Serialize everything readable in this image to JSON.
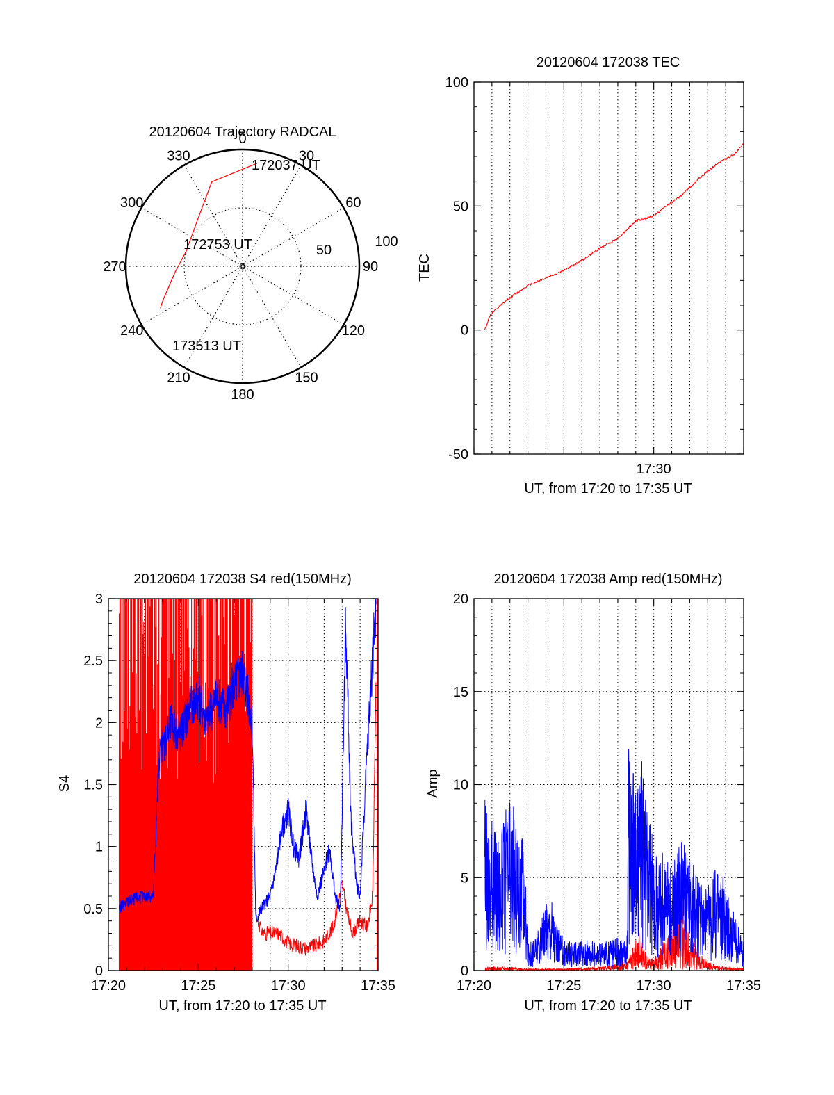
{
  "colors": {
    "red": "#ff0000",
    "blue": "#0000ff",
    "axis": "#000000"
  },
  "chart_data": [
    {
      "type": "polar",
      "title": "20120604 Trajectory RADCAL",
      "angle_labels": [
        "0",
        "30",
        "60",
        "90",
        "120",
        "150",
        "180",
        "210",
        "240",
        "270",
        "300",
        "330"
      ],
      "radial_labels": [
        "50",
        "100"
      ],
      "radial_max": 100,
      "start_label": "172037 UT",
      "mid_label": "172753 UT",
      "end_label": "173513 UT",
      "trajectory": {
        "color": "red",
        "points": [
          [
            8,
            89
          ],
          [
            340,
            77
          ],
          [
            315,
            55
          ],
          [
            285,
            50
          ],
          [
            265,
            58
          ],
          [
            253,
            67
          ],
          [
            247,
            74
          ],
          [
            243,
            79
          ]
        ]
      }
    },
    {
      "type": "line",
      "title": "20120604 172038 TEC",
      "ylabel": "TEC",
      "xlabel": "UT, from 17:20 to 17:35 UT",
      "ylim": [
        -50,
        100
      ],
      "yticks": [
        "-50",
        "0",
        "50",
        "100"
      ],
      "xlim_min": [
        20,
        35
      ],
      "xticks": [
        {
          "t": 30,
          "label": "17:30"
        }
      ],
      "series": [
        {
          "color": "red",
          "x": [
            20.6,
            20.9,
            21.5,
            22.0,
            23.0,
            24.0,
            25.0,
            26.0,
            27.0,
            28.0,
            29.0,
            30.0,
            30.7,
            31.5,
            32.5,
            33.5,
            34.5,
            35.0
          ],
          "y": [
            0,
            6,
            10,
            13,
            18,
            21,
            24,
            28,
            33,
            37,
            44,
            46,
            50,
            54,
            61,
            67,
            71,
            75
          ]
        }
      ]
    },
    {
      "type": "line",
      "title": "20120604 172038 S4 red(150MHz)",
      "ylabel": "S4",
      "xlabel": "UT, from 17:20 to 17:35 UT",
      "ylim": [
        0,
        3
      ],
      "yticks": [
        "0",
        "0.5",
        "1",
        "1.5",
        "2",
        "2.5",
        "3"
      ],
      "xlim_min": [
        20,
        35
      ],
      "xticks": [
        {
          "t": 20,
          "label": "17:20"
        },
        {
          "t": 25,
          "label": "17:25"
        },
        {
          "t": 30,
          "label": "17:30"
        },
        {
          "t": 35,
          "label": "17:35"
        }
      ],
      "series": [
        {
          "color": "red",
          "style": "spikes",
          "x": [
            20.6,
            28.0
          ],
          "y": [
            0,
            3
          ],
          "trace": {
            "x": [
              28.3,
              28.6,
              29.0,
              29.5,
              30.0,
              30.5,
              31.0,
              31.5,
              32.0,
              32.5,
              32.8,
              33.0,
              33.3,
              33.6,
              34.0,
              34.4,
              34.7,
              34.9
            ],
            "y": [
              0.4,
              0.3,
              0.3,
              0.3,
              0.22,
              0.2,
              0.18,
              0.2,
              0.24,
              0.35,
              0.55,
              0.7,
              0.45,
              0.3,
              0.4,
              0.35,
              0.6,
              2.5
            ]
          }
        },
        {
          "color": "blue",
          "x": [
            20.6,
            21.0,
            21.5,
            22.0,
            22.5,
            22.8,
            23.0,
            23.5,
            24.0,
            24.5,
            25.0,
            25.5,
            26.0,
            26.5,
            27.0,
            27.5,
            28.0,
            28.2,
            28.5,
            29.0,
            29.3,
            29.6,
            30.0,
            30.3,
            30.6,
            31.0,
            31.3,
            31.6,
            32.0,
            32.3,
            32.6,
            32.9,
            33.2,
            33.5,
            33.8,
            34.0,
            34.3,
            34.6,
            34.9
          ],
          "y": [
            0.5,
            0.55,
            0.58,
            0.6,
            0.6,
            1.7,
            1.8,
            2.0,
            1.9,
            2.1,
            2.2,
            2.0,
            2.2,
            2.1,
            2.3,
            2.4,
            2.0,
            0.4,
            0.5,
            0.6,
            0.8,
            1.1,
            1.3,
            1.0,
            0.9,
            1.3,
            0.9,
            0.6,
            0.8,
            1.0,
            0.6,
            0.5,
            2.8,
            1.2,
            0.7,
            0.6,
            1.5,
            2.3,
            3.0
          ]
        }
      ]
    },
    {
      "type": "line",
      "title": "20120604 172038 Amp red(150MHz)",
      "ylabel": "Amp",
      "xlabel": "UT, from 17:20 to 17:35 UT",
      "ylim": [
        0,
        20
      ],
      "yticks": [
        "0",
        "5",
        "10",
        "15",
        "20"
      ],
      "xlim_min": [
        20,
        35
      ],
      "xticks": [
        {
          "t": 20,
          "label": "17:20"
        },
        {
          "t": 25,
          "label": "17:25"
        },
        {
          "t": 30,
          "label": "17:30"
        },
        {
          "t": 35,
          "label": "17:35"
        }
      ],
      "series": [
        {
          "color": "red",
          "x": [
            20.6,
            22.0,
            23.0,
            25.0,
            27.0,
            28.5,
            28.8,
            29.2,
            29.6,
            30.0,
            30.5,
            31.0,
            31.5,
            32.0,
            32.5,
            33.0,
            33.5,
            34.0,
            35.0
          ],
          "y": [
            0.2,
            0.2,
            0.1,
            0.1,
            0.2,
            0.5,
            1.2,
            2.0,
            0.8,
            0.6,
            1.5,
            2.2,
            4.5,
            2.0,
            1.0,
            0.5,
            0.3,
            0.2,
            0.1
          ]
        },
        {
          "color": "blue",
          "x": [
            20.6,
            21.0,
            21.5,
            22.0,
            22.4,
            22.8,
            23.0,
            23.5,
            24.0,
            24.3,
            24.6,
            25.0,
            25.5,
            26.0,
            26.5,
            27.0,
            27.5,
            28.0,
            28.5,
            28.6,
            29.0,
            29.4,
            29.8,
            30.2,
            30.6,
            31.0,
            31.5,
            32.0,
            32.5,
            33.0,
            33.5,
            34.0,
            34.5,
            35.0
          ],
          "y": [
            9.5,
            8.5,
            7.5,
            9.8,
            8.0,
            7.0,
            1.5,
            2.0,
            3.5,
            4.5,
            2.5,
            1.8,
            1.5,
            1.6,
            1.7,
            1.5,
            1.6,
            1.8,
            1.6,
            12.5,
            10.5,
            11.5,
            8.0,
            6.0,
            6.5,
            5.5,
            7.0,
            6.5,
            5.0,
            4.5,
            6.0,
            5.0,
            3.0,
            1.5
          ]
        }
      ]
    }
  ]
}
